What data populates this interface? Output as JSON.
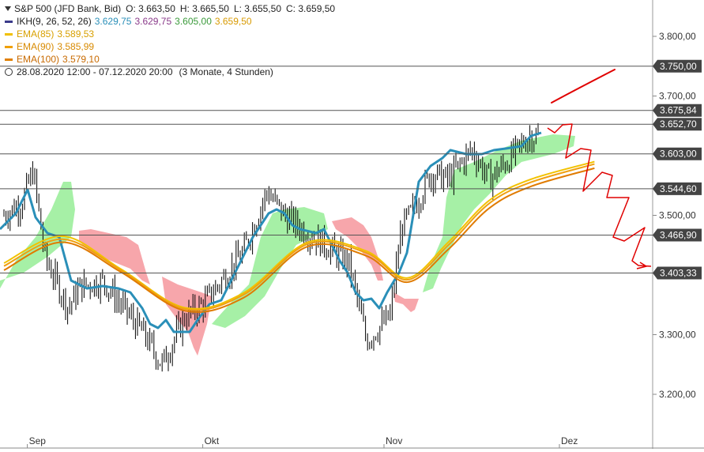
{
  "header": {
    "symbol": "S&P 500 (JFD Bank, Bid)",
    "ohlc": {
      "O": "3.663,50",
      "H": "3.665,50",
      "L": "3.655,50",
      "C": "3.659,50"
    },
    "o_label": "O: 3.663,50",
    "h_label": "H: 3.665,50",
    "l_label": "L: 3.655,50",
    "c_label": "C: 3.659,50",
    "date_range": "28.08.2020 12:00 - 07.12.2020 20:00",
    "period": "(3 Monate, 4 Stunden)"
  },
  "indicators": [
    {
      "name": "IKH(9, 26, 52, 26)",
      "values": [
        "3.629,75",
        "3.629,75",
        "3.605,00",
        "3.659,50"
      ],
      "value_colors": [
        "#2a8fb8",
        "#8a3a8a",
        "#3a9a3a",
        "#d89a00"
      ],
      "color": "#3a3a8a"
    },
    {
      "name": "EMA(85)",
      "value": "3.589,53",
      "color": "#f0c000"
    },
    {
      "name": "EMA(90)",
      "value": "3.585,99",
      "color": "#f0a000"
    },
    {
      "name": "EMA(100)",
      "value": "3.579,10",
      "color": "#e08000"
    }
  ],
  "colors": {
    "kijun": "#2a8fb8",
    "ema85": "#f2c200",
    "ema90": "#f0a010",
    "ema100": "#e07b00",
    "cloud_bull": "#a6f0a6",
    "cloud_bear": "#f7a6ab",
    "candles": "#000000",
    "hline": "#555555",
    "annotation": "#e00000",
    "label_bg": "#444444"
  },
  "chart_data": {
    "type": "line",
    "title": "S&P 500 (JFD Bank, Bid)",
    "timeframe": "4 Stunden",
    "x_range": [
      "28.08.2020 12:00",
      "07.12.2020 20:00"
    ],
    "x_ticks": [
      "Sep",
      "Okt",
      "Nov",
      "Dez"
    ],
    "y_ticks": [
      3200.0,
      3300.0,
      3500.0,
      3700.0,
      3800.0
    ],
    "y_tick_labels": [
      "3.200,00",
      "3.300,00",
      "3.500,00",
      "3.700,00",
      "3.800,00"
    ],
    "ylim": [
      3180,
      3840
    ],
    "horizontal_levels": [
      3750.0,
      3675.84,
      3652.7,
      3603.0,
      3544.6,
      3466.9,
      3403.33
    ],
    "horizontal_level_labels": [
      "3.750,00",
      "3.675,84",
      "3.652,70",
      "3.603,00",
      "3.544,60",
      "3.466,90",
      "3.403,33"
    ],
    "series": [
      {
        "name": "Close (approx.)",
        "x": [
          "2020-08-28",
          "2020-08-31",
          "2020-09-02",
          "2020-09-04",
          "2020-09-08",
          "2020-09-10",
          "2020-09-14",
          "2020-09-17",
          "2020-09-21",
          "2020-09-24",
          "2020-09-28",
          "2020-10-01",
          "2020-10-05",
          "2020-10-08",
          "2020-10-12",
          "2020-10-15",
          "2020-10-19",
          "2020-10-22",
          "2020-10-26",
          "2020-10-29",
          "2020-11-02",
          "2020-11-04",
          "2020-11-06",
          "2020-11-09",
          "2020-11-12",
          "2020-11-16",
          "2020-11-19",
          "2020-11-23",
          "2020-11-26",
          "2020-11-30",
          "2020-12-03",
          "2020-12-07"
        ],
        "values": [
          3500,
          3520,
          3575,
          3430,
          3345,
          3380,
          3390,
          3350,
          3300,
          3250,
          3330,
          3350,
          3400,
          3440,
          3540,
          3500,
          3470,
          3450,
          3420,
          3290,
          3330,
          3480,
          3510,
          3570,
          3560,
          3610,
          3560,
          3600,
          3635,
          3620,
          3660,
          3659
        ]
      },
      {
        "name": "EMA(85)",
        "x": [
          "2020-08-28",
          "2020-09-07",
          "2020-09-17",
          "2020-09-28",
          "2020-10-08",
          "2020-10-19",
          "2020-10-29",
          "2020-11-05",
          "2020-11-12",
          "2020-11-19",
          "2020-11-26",
          "2020-12-07"
        ],
        "values": [
          3420,
          3465,
          3410,
          3345,
          3370,
          3455,
          3440,
          3395,
          3455,
          3525,
          3560,
          3590
        ]
      },
      {
        "name": "EMA(90)",
        "x": [
          "2020-08-28",
          "2020-09-07",
          "2020-09-17",
          "2020-09-28",
          "2020-10-08",
          "2020-10-19",
          "2020-10-29",
          "2020-11-05",
          "2020-11-12",
          "2020-11-19",
          "2020-11-26",
          "2020-12-07"
        ],
        "values": [
          3415,
          3460,
          3408,
          3343,
          3367,
          3452,
          3437,
          3392,
          3450,
          3520,
          3555,
          3586
        ]
      },
      {
        "name": "EMA(100)",
        "x": [
          "2020-08-28",
          "2020-09-07",
          "2020-09-17",
          "2020-09-28",
          "2020-10-08",
          "2020-10-19",
          "2020-10-29",
          "2020-11-05",
          "2020-11-12",
          "2020-11-19",
          "2020-11-26",
          "2020-12-07"
        ],
        "values": [
          3408,
          3455,
          3405,
          3340,
          3362,
          3448,
          3432,
          3388,
          3443,
          3512,
          3548,
          3579
        ]
      }
    ]
  }
}
